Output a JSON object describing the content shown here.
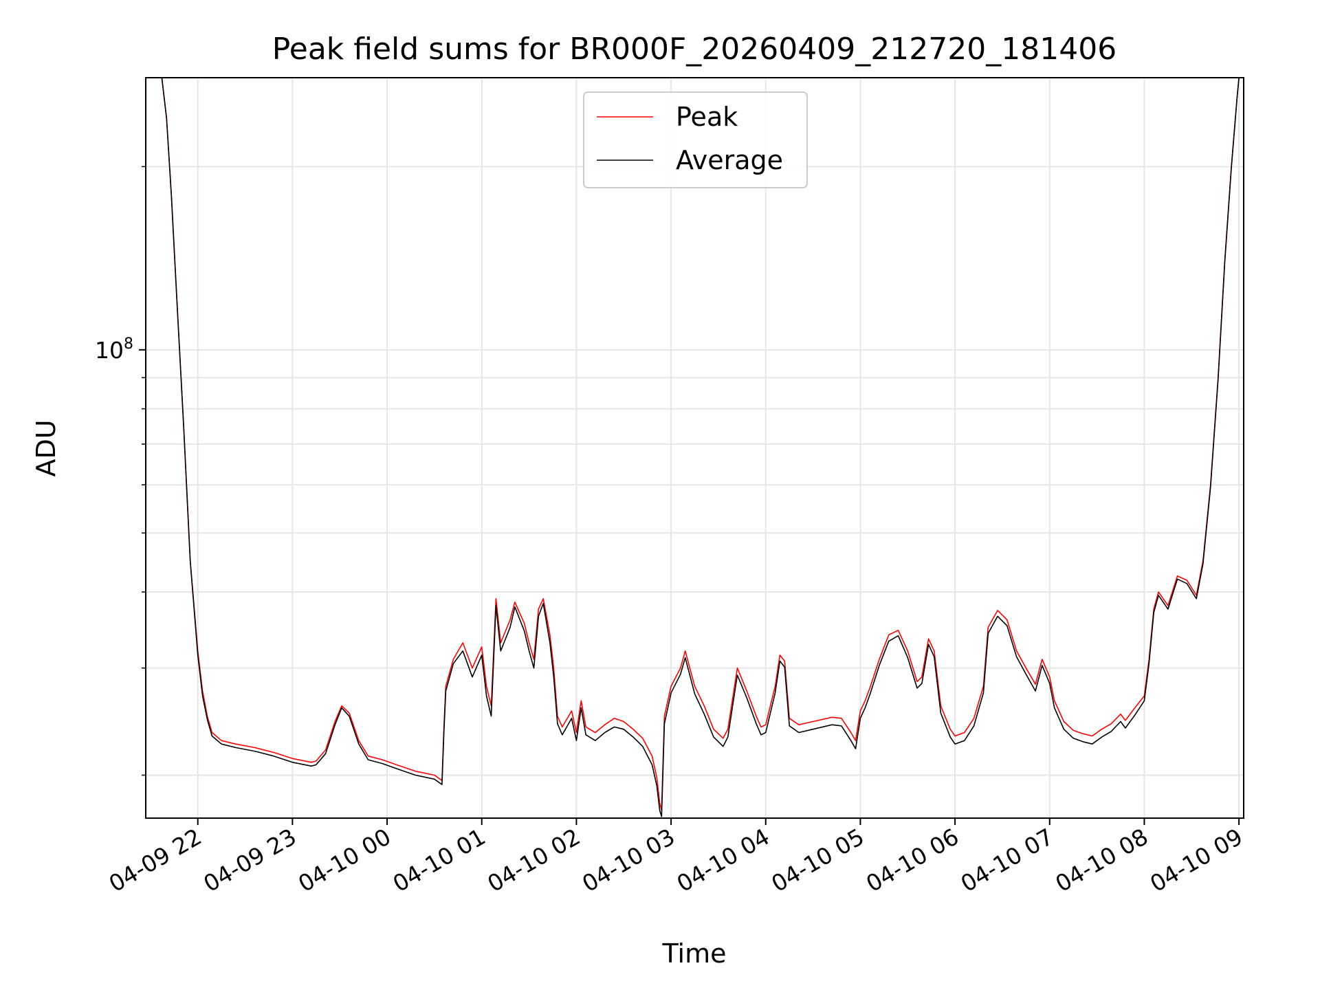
{
  "chart_data": {
    "type": "line",
    "title": "Peak field sums for BR000F_20260409_212720_181406",
    "xlabel": "Time",
    "ylabel": "ADU",
    "yscale": "log",
    "grid": true,
    "legend_position": "upper-center",
    "x_tick_labels": [
      "04-09 22",
      "04-09 23",
      "04-10 00",
      "04-10 01",
      "04-10 02",
      "04-10 03",
      "04-10 04",
      "04-10 05",
      "04-10 06",
      "04-10 07",
      "04-10 08",
      "04-10 09"
    ],
    "y_major_tick": {
      "mantissa": "10",
      "exponent": "8",
      "value": 100000000
    },
    "xlim_hours": [
      -0.55,
      11.05
    ],
    "ylim": [
      17000000,
      280000000
    ],
    "x_unit": "hours after 04-09 22:00",
    "series": [
      {
        "name": "Peak",
        "color": "#ff0000",
        "points": [
          [
            -0.38,
            280000000
          ],
          [
            -0.33,
            240000000
          ],
          [
            -0.28,
            180000000
          ],
          [
            -0.22,
            120000000
          ],
          [
            -0.15,
            75000000
          ],
          [
            -0.08,
            45000000
          ],
          [
            0.0,
            32000000
          ],
          [
            0.05,
            27500000
          ],
          [
            0.1,
            25000000
          ],
          [
            0.15,
            23500000
          ],
          [
            0.25,
            22800000
          ],
          [
            0.4,
            22500000
          ],
          [
            0.6,
            22200000
          ],
          [
            0.8,
            21800000
          ],
          [
            1.0,
            21300000
          ],
          [
            1.2,
            21000000
          ],
          [
            1.25,
            21100000
          ],
          [
            1.35,
            22000000
          ],
          [
            1.45,
            24500000
          ],
          [
            1.52,
            26000000
          ],
          [
            1.6,
            25300000
          ],
          [
            1.7,
            22800000
          ],
          [
            1.8,
            21500000
          ],
          [
            1.95,
            21200000
          ],
          [
            2.1,
            20800000
          ],
          [
            2.3,
            20300000
          ],
          [
            2.5,
            20000000
          ],
          [
            2.58,
            19600000
          ],
          [
            2.6,
            24000000
          ],
          [
            2.62,
            28000000
          ],
          [
            2.7,
            31000000
          ],
          [
            2.8,
            33000000
          ],
          [
            2.9,
            30000000
          ],
          [
            3.0,
            32500000
          ],
          [
            3.05,
            28000000
          ],
          [
            3.1,
            26000000
          ],
          [
            3.15,
            39000000
          ],
          [
            3.2,
            33000000
          ],
          [
            3.3,
            36000000
          ],
          [
            3.35,
            38500000
          ],
          [
            3.45,
            35500000
          ],
          [
            3.5,
            33000000
          ],
          [
            3.55,
            31000000
          ],
          [
            3.6,
            37500000
          ],
          [
            3.65,
            39000000
          ],
          [
            3.72,
            34000000
          ],
          [
            3.76,
            30000000
          ],
          [
            3.8,
            25000000
          ],
          [
            3.85,
            24000000
          ],
          [
            3.95,
            25500000
          ],
          [
            4.0,
            23500000
          ],
          [
            4.05,
            26500000
          ],
          [
            4.1,
            24000000
          ],
          [
            4.2,
            23500000
          ],
          [
            4.3,
            24200000
          ],
          [
            4.4,
            24800000
          ],
          [
            4.5,
            24500000
          ],
          [
            4.6,
            23800000
          ],
          [
            4.7,
            23000000
          ],
          [
            4.8,
            21500000
          ],
          [
            4.85,
            19800000
          ],
          [
            4.88,
            18000000
          ],
          [
            4.9,
            17500000
          ],
          [
            4.93,
            25000000
          ],
          [
            5.0,
            28000000
          ],
          [
            5.1,
            30000000
          ],
          [
            5.15,
            32000000
          ],
          [
            5.25,
            28000000
          ],
          [
            5.35,
            26000000
          ],
          [
            5.45,
            23800000
          ],
          [
            5.55,
            23000000
          ],
          [
            5.6,
            23800000
          ],
          [
            5.7,
            30000000
          ],
          [
            5.8,
            27500000
          ],
          [
            5.9,
            25000000
          ],
          [
            5.95,
            24000000
          ],
          [
            6.0,
            24200000
          ],
          [
            6.1,
            28000000
          ],
          [
            6.15,
            31500000
          ],
          [
            6.2,
            30800000
          ],
          [
            6.25,
            24800000
          ],
          [
            6.35,
            24200000
          ],
          [
            6.5,
            24500000
          ],
          [
            6.7,
            24900000
          ],
          [
            6.8,
            24800000
          ],
          [
            6.9,
            23500000
          ],
          [
            6.95,
            22800000
          ],
          [
            7.0,
            25500000
          ],
          [
            7.05,
            26500000
          ],
          [
            7.1,
            27800000
          ],
          [
            7.2,
            31000000
          ],
          [
            7.3,
            34000000
          ],
          [
            7.4,
            34600000
          ],
          [
            7.5,
            32000000
          ],
          [
            7.6,
            28500000
          ],
          [
            7.65,
            29000000
          ],
          [
            7.72,
            33500000
          ],
          [
            7.78,
            32000000
          ],
          [
            7.85,
            26000000
          ],
          [
            7.95,
            23800000
          ],
          [
            8.0,
            23200000
          ],
          [
            8.1,
            23500000
          ],
          [
            8.2,
            24800000
          ],
          [
            8.3,
            28000000
          ],
          [
            8.35,
            35000000
          ],
          [
            8.45,
            37300000
          ],
          [
            8.55,
            36000000
          ],
          [
            8.65,
            32000000
          ],
          [
            8.75,
            30000000
          ],
          [
            8.85,
            28200000
          ],
          [
            8.92,
            31000000
          ],
          [
            9.0,
            29000000
          ],
          [
            9.05,
            26500000
          ],
          [
            9.15,
            24500000
          ],
          [
            9.25,
            23700000
          ],
          [
            9.35,
            23400000
          ],
          [
            9.45,
            23200000
          ],
          [
            9.55,
            23800000
          ],
          [
            9.65,
            24300000
          ],
          [
            9.75,
            25200000
          ],
          [
            9.8,
            24600000
          ],
          [
            9.9,
            25800000
          ],
          [
            10.0,
            27000000
          ],
          [
            10.05,
            31000000
          ],
          [
            10.1,
            37500000
          ],
          [
            10.15,
            40000000
          ],
          [
            10.25,
            38000000
          ],
          [
            10.35,
            42500000
          ],
          [
            10.45,
            41800000
          ],
          [
            10.55,
            39500000
          ],
          [
            10.62,
            45000000
          ],
          [
            10.7,
            60000000
          ],
          [
            10.78,
            90000000
          ],
          [
            10.85,
            140000000
          ],
          [
            10.92,
            200000000
          ],
          [
            10.98,
            260000000
          ],
          [
            11.0,
            280000000
          ]
        ]
      },
      {
        "name": "Average",
        "color": "#000000",
        "points": [
          [
            -0.38,
            280000000
          ],
          [
            -0.33,
            240000000
          ],
          [
            -0.28,
            180000000
          ],
          [
            -0.22,
            120000000
          ],
          [
            -0.15,
            75000000
          ],
          [
            -0.08,
            45000000
          ],
          [
            0.0,
            31500000
          ],
          [
            0.05,
            27000000
          ],
          [
            0.1,
            24700000
          ],
          [
            0.15,
            23200000
          ],
          [
            0.25,
            22500000
          ],
          [
            0.4,
            22200000
          ],
          [
            0.6,
            21900000
          ],
          [
            0.8,
            21500000
          ],
          [
            1.0,
            21000000
          ],
          [
            1.2,
            20700000
          ],
          [
            1.25,
            20800000
          ],
          [
            1.35,
            21700000
          ],
          [
            1.45,
            24200000
          ],
          [
            1.52,
            25800000
          ],
          [
            1.6,
            25000000
          ],
          [
            1.7,
            22500000
          ],
          [
            1.8,
            21200000
          ],
          [
            1.95,
            20900000
          ],
          [
            2.1,
            20500000
          ],
          [
            2.3,
            20000000
          ],
          [
            2.5,
            19700000
          ],
          [
            2.58,
            19300000
          ],
          [
            2.6,
            23500000
          ],
          [
            2.62,
            27500000
          ],
          [
            2.7,
            30500000
          ],
          [
            2.8,
            32000000
          ],
          [
            2.9,
            29000000
          ],
          [
            3.0,
            31500000
          ],
          [
            3.05,
            27000000
          ],
          [
            3.1,
            25000000
          ],
          [
            3.15,
            38000000
          ],
          [
            3.2,
            32000000
          ],
          [
            3.3,
            35000000
          ],
          [
            3.35,
            37800000
          ],
          [
            3.45,
            34500000
          ],
          [
            3.5,
            32000000
          ],
          [
            3.55,
            30000000
          ],
          [
            3.6,
            36500000
          ],
          [
            3.65,
            38300000
          ],
          [
            3.72,
            33000000
          ],
          [
            3.76,
            29000000
          ],
          [
            3.8,
            24300000
          ],
          [
            3.85,
            23300000
          ],
          [
            3.95,
            24800000
          ],
          [
            4.0,
            22800000
          ],
          [
            4.05,
            25800000
          ],
          [
            4.1,
            23300000
          ],
          [
            4.2,
            22800000
          ],
          [
            4.3,
            23500000
          ],
          [
            4.4,
            24000000
          ],
          [
            4.5,
            23800000
          ],
          [
            4.6,
            23100000
          ],
          [
            4.7,
            22300000
          ],
          [
            4.8,
            20800000
          ],
          [
            4.85,
            19200000
          ],
          [
            4.88,
            17500000
          ],
          [
            4.9,
            17100000
          ],
          [
            4.93,
            24300000
          ],
          [
            5.0,
            27300000
          ],
          [
            5.1,
            29300000
          ],
          [
            5.15,
            31200000
          ],
          [
            5.25,
            27200000
          ],
          [
            5.35,
            25200000
          ],
          [
            5.45,
            23100000
          ],
          [
            5.55,
            22300000
          ],
          [
            5.6,
            23100000
          ],
          [
            5.7,
            29200000
          ],
          [
            5.8,
            26800000
          ],
          [
            5.9,
            24300000
          ],
          [
            5.95,
            23300000
          ],
          [
            6.0,
            23500000
          ],
          [
            6.1,
            27300000
          ],
          [
            6.15,
            30800000
          ],
          [
            6.2,
            30100000
          ],
          [
            6.25,
            24100000
          ],
          [
            6.35,
            23500000
          ],
          [
            6.5,
            23800000
          ],
          [
            6.7,
            24200000
          ],
          [
            6.8,
            24100000
          ],
          [
            6.9,
            22800000
          ],
          [
            6.95,
            22100000
          ],
          [
            7.0,
            24800000
          ],
          [
            7.05,
            25800000
          ],
          [
            7.1,
            27100000
          ],
          [
            7.2,
            30300000
          ],
          [
            7.3,
            33200000
          ],
          [
            7.4,
            33900000
          ],
          [
            7.5,
            31200000
          ],
          [
            7.6,
            27800000
          ],
          [
            7.65,
            28300000
          ],
          [
            7.72,
            32800000
          ],
          [
            7.78,
            31300000
          ],
          [
            7.85,
            25300000
          ],
          [
            7.95,
            23100000
          ],
          [
            8.0,
            22500000
          ],
          [
            8.1,
            22800000
          ],
          [
            8.2,
            24100000
          ],
          [
            8.3,
            27300000
          ],
          [
            8.35,
            34200000
          ],
          [
            8.45,
            36500000
          ],
          [
            8.55,
            35200000
          ],
          [
            8.65,
            31300000
          ],
          [
            8.75,
            29300000
          ],
          [
            8.85,
            27500000
          ],
          [
            8.92,
            30300000
          ],
          [
            9.0,
            28300000
          ],
          [
            9.05,
            25800000
          ],
          [
            9.15,
            23800000
          ],
          [
            9.25,
            23000000
          ],
          [
            9.35,
            22700000
          ],
          [
            9.45,
            22500000
          ],
          [
            9.55,
            23100000
          ],
          [
            9.65,
            23600000
          ],
          [
            9.75,
            24500000
          ],
          [
            9.8,
            23900000
          ],
          [
            9.9,
            25100000
          ],
          [
            10.0,
            26500000
          ],
          [
            10.05,
            30500000
          ],
          [
            10.1,
            37000000
          ],
          [
            10.15,
            39500000
          ],
          [
            10.25,
            37500000
          ],
          [
            10.35,
            42000000
          ],
          [
            10.45,
            41300000
          ],
          [
            10.55,
            39000000
          ],
          [
            10.62,
            44500000
          ],
          [
            10.7,
            59500000
          ],
          [
            10.78,
            89500000
          ],
          [
            10.85,
            139500000
          ],
          [
            10.92,
            199500000
          ],
          [
            10.98,
            259500000
          ],
          [
            11.0,
            280000000
          ]
        ]
      }
    ]
  }
}
